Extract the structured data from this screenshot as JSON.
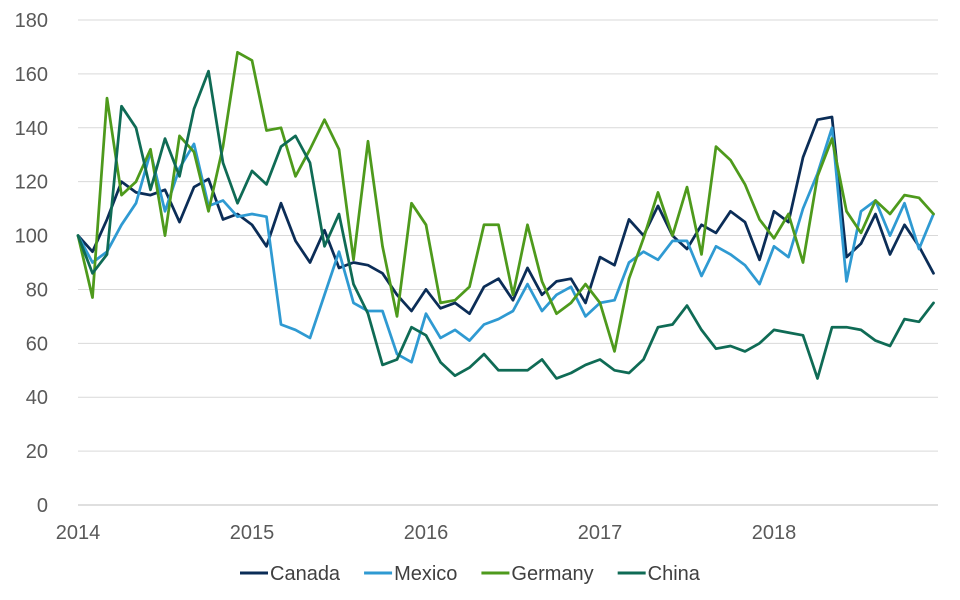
{
  "chart_data": {
    "type": "line",
    "title": "",
    "xlabel": "",
    "ylabel": "",
    "ylim": [
      0,
      180
    ],
    "yticks": [
      0,
      20,
      40,
      60,
      80,
      100,
      120,
      140,
      160,
      180
    ],
    "xticks": [
      {
        "label": "2014",
        "index": 0
      },
      {
        "label": "2015",
        "index": 12
      },
      {
        "label": "2016",
        "index": 24
      },
      {
        "label": "2017",
        "index": 36
      },
      {
        "label": "2018",
        "index": 48
      }
    ],
    "grid": "horizontal",
    "legend": "bottom",
    "period_count": 60,
    "series": [
      {
        "name": "Canada",
        "color": "#0b2d57",
        "values": [
          100,
          94,
          106,
          120,
          116,
          115,
          117,
          105,
          118,
          121,
          106,
          108,
          104,
          96,
          112,
          98,
          90,
          102,
          88,
          90,
          89,
          86,
          78,
          72,
          80,
          73,
          75,
          71,
          81,
          84,
          76,
          88,
          78,
          83,
          84,
          75,
          92,
          89,
          106,
          100,
          111,
          100,
          95,
          104,
          101,
          109,
          105,
          91,
          109,
          105,
          129,
          143,
          144,
          92,
          97,
          108,
          93,
          104,
          96,
          86
        ]
      },
      {
        "name": "Mexico",
        "color": "#2f9ad2",
        "values": [
          100,
          90,
          94,
          104,
          112,
          131,
          109,
          125,
          134,
          111,
          113,
          107,
          108,
          107,
          67,
          65,
          62,
          78,
          94,
          75,
          72,
          72,
          56,
          53,
          71,
          62,
          65,
          61,
          67,
          69,
          72,
          82,
          72,
          78,
          81,
          70,
          75,
          76,
          90,
          94,
          91,
          98,
          98,
          85,
          96,
          93,
          89,
          82,
          96,
          92,
          110,
          123,
          140,
          83,
          109,
          113,
          100,
          112,
          95,
          108
        ]
      },
      {
        "name": "Germany",
        "color": "#4e9a1c",
        "values": [
          100,
          77,
          151,
          115,
          120,
          132,
          100,
          137,
          131,
          109,
          133,
          168,
          165,
          139,
          140,
          122,
          132,
          143,
          132,
          91,
          135,
          96,
          70,
          112,
          104,
          75,
          76,
          81,
          104,
          104,
          78,
          104,
          83,
          71,
          75,
          82,
          75,
          57,
          84,
          99,
          116,
          100,
          118,
          93,
          133,
          128,
          119,
          106,
          99,
          108,
          90,
          122,
          136,
          109,
          101,
          113,
          108,
          115,
          114,
          108
        ]
      },
      {
        "name": "China",
        "color": "#0f6b55",
        "values": [
          100,
          86,
          93,
          148,
          140,
          117,
          136,
          122,
          147,
          161,
          127,
          112,
          124,
          119,
          133,
          137,
          127,
          96,
          108,
          82,
          71,
          52,
          54,
          66,
          63,
          53,
          48,
          51,
          56,
          50,
          50,
          50,
          54,
          47,
          49,
          52,
          54,
          50,
          49,
          54,
          66,
          67,
          74,
          65,
          58,
          59,
          57,
          60,
          65,
          64,
          63,
          47,
          66,
          66,
          65,
          61,
          59,
          69,
          68,
          75
        ]
      }
    ]
  }
}
